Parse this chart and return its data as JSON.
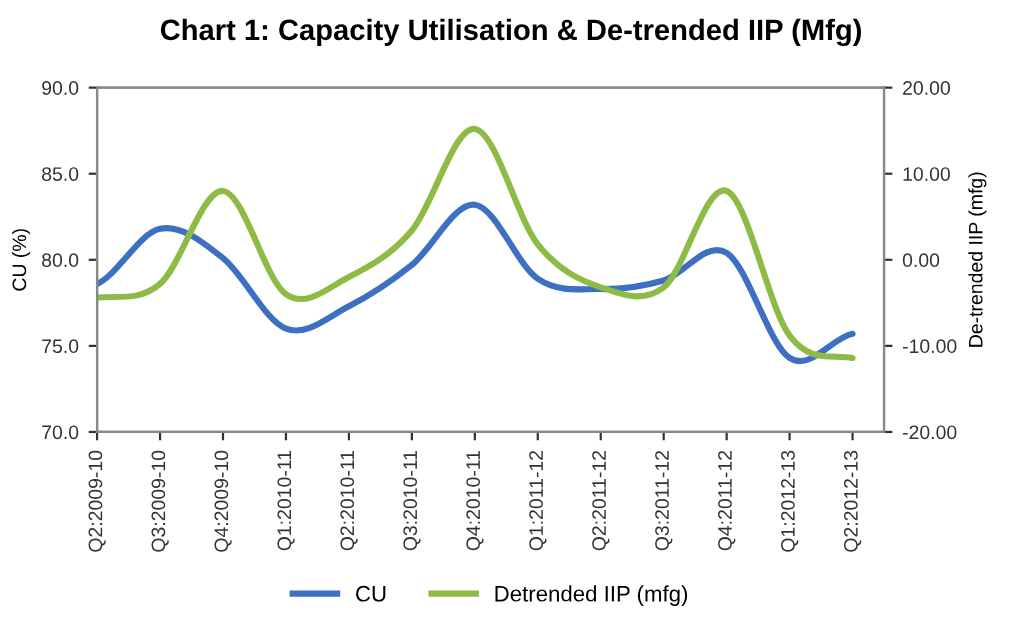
{
  "chart_data": {
    "type": "line",
    "title": "Chart 1: Capacity Utilisation & De-trended IIP (Mfg)",
    "ylabel": "CU (%)",
    "y2label": "De-trended IIP (mfg)",
    "categories": [
      "Q2:2009-10",
      "Q3:2009-10",
      "Q4:2009-10",
      "Q1:2010-11",
      "Q2:2010-11",
      "Q3:2010-11",
      "Q4:2010-11",
      "Q1:2011-12",
      "Q2:2011-12",
      "Q3:2011-12",
      "Q4:2011-12",
      "Q1:2012-13",
      "Q2:2012-13"
    ],
    "series": [
      {
        "name": "CU",
        "color": "#3d70c0",
        "values": [
          78.6,
          81.8,
          80.1,
          76.0,
          77.3,
          79.7,
          83.2,
          78.9,
          78.3,
          78.8,
          80.4,
          74.3,
          75.7
        ]
      },
      {
        "name": "Detrended IIP (mfg)",
        "color": "#8dbb45",
        "axis": "y2",
        "values": [
          -4.4,
          -2.8,
          8.0,
          -4.0,
          -2.0,
          3.4,
          15.2,
          1.8,
          -3.2,
          -3.2,
          8.0,
          -8.8,
          -11.4
        ]
      }
    ],
    "ylim": [
      70,
      90
    ],
    "yticks": [
      {
        "value": 70,
        "label": "70.0"
      },
      {
        "value": 75,
        "label": "75.0"
      },
      {
        "value": 80,
        "label": "80.0"
      },
      {
        "value": 85,
        "label": "85.0"
      },
      {
        "value": 90,
        "label": "90.0"
      }
    ],
    "y2lim": [
      -20,
      20
    ],
    "y2ticks": [
      {
        "value": -20,
        "label": "-20.00"
      },
      {
        "value": -10,
        "label": "-10.00"
      },
      {
        "value": 0,
        "label": "0.00"
      },
      {
        "value": 10,
        "label": "10.00"
      },
      {
        "value": 20,
        "label": "20.00"
      }
    ],
    "grid": false,
    "legend": "bottom",
    "marker": "none",
    "line_style": "solid"
  }
}
